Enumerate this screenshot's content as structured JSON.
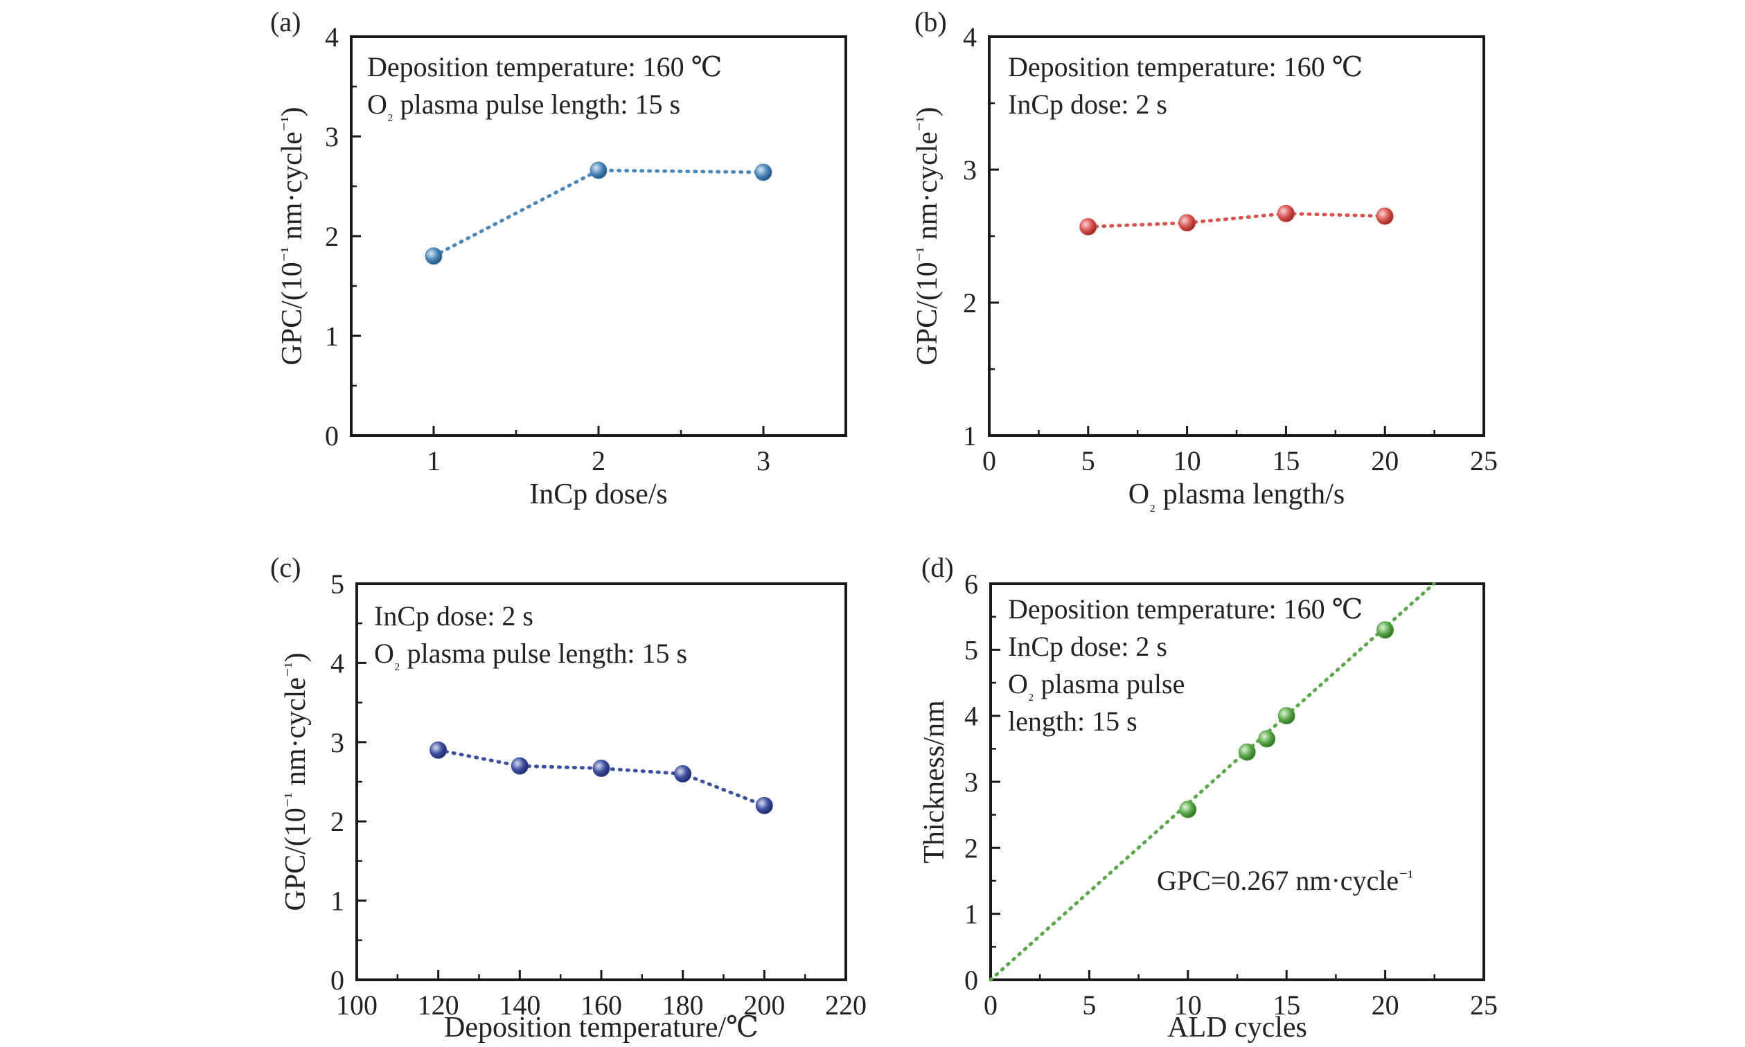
{
  "figure": {
    "background": "#ffffff",
    "axis_color": "#1a1a1a"
  },
  "chart_data": [
    {
      "type": "line",
      "panel": "(a)",
      "xlabel": "InCp dose/s",
      "ylabel": "GPC/(10⁻¹ nm·cycle⁻¹)",
      "xlim": [
        0.5,
        3.5
      ],
      "ylim": [
        0,
        4
      ],
      "xticks": [
        1,
        2,
        3
      ],
      "yticks": [
        0,
        1,
        2,
        3,
        4
      ],
      "annotations": [
        "Deposition temperature: 160 ℃",
        "O₂ plasma pulse length: 15 s"
      ],
      "series": [
        {
          "x": [
            1,
            2,
            3
          ],
          "values": [
            1.8,
            2.66,
            2.64
          ],
          "color": "#4a86b8"
        }
      ]
    },
    {
      "type": "line",
      "panel": "(b)",
      "xlabel": "O₂ plasma length/s",
      "ylabel": "GPC/(10⁻¹ nm·cycle⁻¹)",
      "xlim": [
        0,
        25
      ],
      "ylim": [
        1,
        4
      ],
      "xticks": [
        0,
        5,
        10,
        15,
        20,
        25
      ],
      "yticks": [
        1,
        2,
        3,
        4
      ],
      "annotations": [
        "Deposition temperature: 160 ℃",
        "InCp dose: 2 s"
      ],
      "series": [
        {
          "x": [
            5,
            10,
            15,
            20
          ],
          "values": [
            2.57,
            2.6,
            2.67,
            2.65
          ],
          "color": "#d9534f"
        }
      ]
    },
    {
      "type": "line",
      "panel": "(c)",
      "xlabel": "Deposition temperature/℃",
      "ylabel": "GPC/(10⁻¹ nm·cycle⁻¹)",
      "xlim": [
        100,
        220
      ],
      "ylim": [
        0,
        5
      ],
      "xticks": [
        100,
        120,
        140,
        160,
        180,
        200,
        220
      ],
      "yticks": [
        0,
        1,
        2,
        3,
        4,
        5
      ],
      "annotations": [
        "InCp dose: 2 s",
        "O₂ plasma pulse length: 15 s"
      ],
      "series": [
        {
          "x": [
            120,
            140,
            160,
            180,
            200
          ],
          "values": [
            2.9,
            2.7,
            2.67,
            2.6,
            2.2
          ],
          "color": "#3d4f9f"
        }
      ]
    },
    {
      "type": "scatter",
      "panel": "(d)",
      "xlabel": "ALD cycles",
      "ylabel": "Thickness/nm",
      "xlim": [
        0,
        25
      ],
      "ylim": [
        0,
        6
      ],
      "xticks": [
        0,
        5,
        10,
        15,
        20,
        25
      ],
      "yticks": [
        0,
        1,
        2,
        3,
        4,
        5,
        6
      ],
      "annotations": [
        "Deposition temperature: 160 ℃",
        "InCp dose: 2 s",
        "O₂ plasma pulse",
        "length: 15 s"
      ],
      "fit_label": "GPC=0.267 nm·cycle⁻¹",
      "fit": {
        "slope": 0.267,
        "intercept": 0
      },
      "series": [
        {
          "x": [
            10,
            13,
            14,
            15,
            20
          ],
          "values": [
            2.58,
            3.45,
            3.65,
            4.0,
            5.3
          ],
          "color": "#5aa84a"
        }
      ]
    }
  ]
}
